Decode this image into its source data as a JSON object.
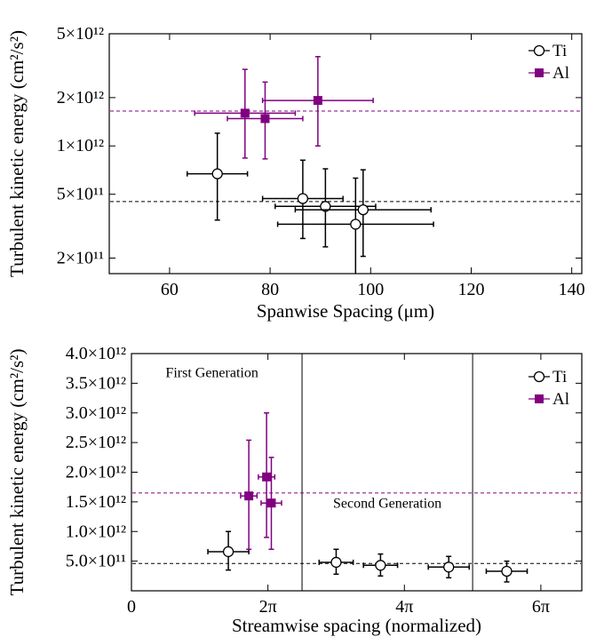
{
  "chart_data": [
    {
      "type": "scatter",
      "xlabel": "Spanwise Spacing (μm)",
      "ylabel": "Turbulent kinetic energy (cm²/s²)",
      "xlim": [
        48,
        142
      ],
      "ylim": [
        160000000000,
        5000000000000
      ],
      "yscale": "log",
      "x_ticks": [
        {
          "v": 60,
          "label": "60"
        },
        {
          "v": 80,
          "label": "80"
        },
        {
          "v": 100,
          "label": "100"
        },
        {
          "v": 120,
          "label": "120"
        },
        {
          "v": 140,
          "label": "140"
        }
      ],
      "y_ticks": [
        {
          "v": 200000000000,
          "label": "2×10¹¹"
        },
        {
          "v": 500000000000,
          "label": "5×10¹¹"
        },
        {
          "v": 1000000000000,
          "label": "1×10¹²"
        },
        {
          "v": 2000000000000,
          "label": "2×10¹²"
        },
        {
          "v": 5000000000000,
          "label": "5×10¹²"
        }
      ],
      "legend": {
        "position": "top-right",
        "entries": [
          {
            "name": "Ti"
          },
          {
            "name": "Al"
          }
        ]
      },
      "series": [
        {
          "name": "Ti",
          "marker": "open-circle",
          "color": "#000000",
          "points": [
            {
              "x": 69.5,
              "y": 670000000000,
              "xerr": 6,
              "ylo": 345000000000,
              "yhi": 1200000000000
            },
            {
              "x": 86.5,
              "y": 470000000000,
              "xerr": 8,
              "ylo": 265000000000,
              "yhi": 815000000000
            },
            {
              "x": 91,
              "y": 420000000000,
              "xerr": 10,
              "ylo": 235000000000,
              "yhi": 720000000000
            },
            {
              "x": 98.5,
              "y": 400000000000,
              "xerr": 13.5,
              "ylo": 205000000000,
              "yhi": 710000000000
            },
            {
              "x": 97,
              "y": 325000000000,
              "xerr": 15.5,
              "ylo": 160000000000,
              "yhi": 630000000000
            }
          ],
          "mean": 450000000000
        },
        {
          "name": "Al",
          "marker": "filled-square",
          "color": "#800080",
          "points": [
            {
              "x": 75,
              "y": 1600000000000,
              "xerr": 10,
              "ylo": 840000000000,
              "yhi": 3000000000000
            },
            {
              "x": 79,
              "y": 1480000000000,
              "xerr": 7.5,
              "ylo": 830000000000,
              "yhi": 2500000000000
            },
            {
              "x": 89.5,
              "y": 1920000000000,
              "xerr": 11,
              "ylo": 1000000000000,
              "yhi": 3600000000000
            }
          ],
          "mean": 1650000000000
        }
      ]
    },
    {
      "type": "scatter",
      "xlabel": "Streamwise spacing (normalized)",
      "ylabel": "Turbulent kinetic energy (cm²/s²)",
      "xlim": [
        0,
        6.6
      ],
      "ylim": [
        0,
        4000000000000
      ],
      "x_ticks": [
        {
          "v": 0,
          "label": "0"
        },
        {
          "v": 2,
          "label": "2π"
        },
        {
          "v": 4,
          "label": "4π"
        },
        {
          "v": 6,
          "label": "6π"
        }
      ],
      "y_ticks": [
        {
          "v": 500000000000,
          "label": "5.0×10¹¹"
        },
        {
          "v": 1000000000000,
          "label": "1.0×10¹²"
        },
        {
          "v": 1500000000000,
          "label": "1.5×10¹²"
        },
        {
          "v": 2000000000000,
          "label": "2.0×10¹²"
        },
        {
          "v": 2500000000000,
          "label": "2.5×10¹²"
        },
        {
          "v": 3000000000000,
          "label": "3.0×10¹²"
        },
        {
          "v": 3500000000000,
          "label": "3.5×10¹²"
        },
        {
          "v": 4000000000000,
          "label": "4.0×10¹²"
        }
      ],
      "x_tick_unit": "π",
      "legend": {
        "position": "top-right",
        "entries": [
          {
            "name": "Ti"
          },
          {
            "name": "Al"
          }
        ]
      },
      "region_dividers": [
        2.5,
        5.0
      ],
      "annotations": [
        {
          "text": "First Generation",
          "x": 1.18,
          "y": 3600000000000.0
        },
        {
          "text": "Second Generation",
          "x": 3.75,
          "y": 1400000000000.0
        }
      ],
      "series": [
        {
          "name": "Ti",
          "marker": "open-circle",
          "color": "#000000",
          "points": [
            {
              "x": 1.42,
              "y": 660000000000,
              "xerr": 0.3,
              "ylo": 350000000000,
              "yhi": 1000000000000
            },
            {
              "x": 3.0,
              "y": 480000000000,
              "xerr": 0.25,
              "ylo": 280000000000,
              "yhi": 700000000000
            },
            {
              "x": 3.65,
              "y": 430000000000,
              "xerr": 0.25,
              "ylo": 250000000000,
              "yhi": 620000000000
            },
            {
              "x": 4.65,
              "y": 400000000000,
              "xerr": 0.3,
              "ylo": 220000000000,
              "yhi": 580000000000
            },
            {
              "x": 5.5,
              "y": 330000000000,
              "xerr": 0.3,
              "ylo": 150000000000,
              "yhi": 500000000000
            }
          ],
          "mean": 460000000000
        },
        {
          "name": "Al",
          "marker": "filled-square",
          "color": "#800080",
          "points": [
            {
              "x": 1.72,
              "y": 1600000000000,
              "xerr": 0.12,
              "ylo": 700000000000,
              "yhi": 2540000000000
            },
            {
              "x": 1.98,
              "y": 1920000000000,
              "xerr": 0.12,
              "ylo": 900000000000,
              "yhi": 3000000000000
            },
            {
              "x": 2.05,
              "y": 1480000000000,
              "xerr": 0.15,
              "ylo": 700000000000,
              "yhi": 2250000000000
            }
          ],
          "mean": 1650000000000
        }
      ]
    }
  ]
}
